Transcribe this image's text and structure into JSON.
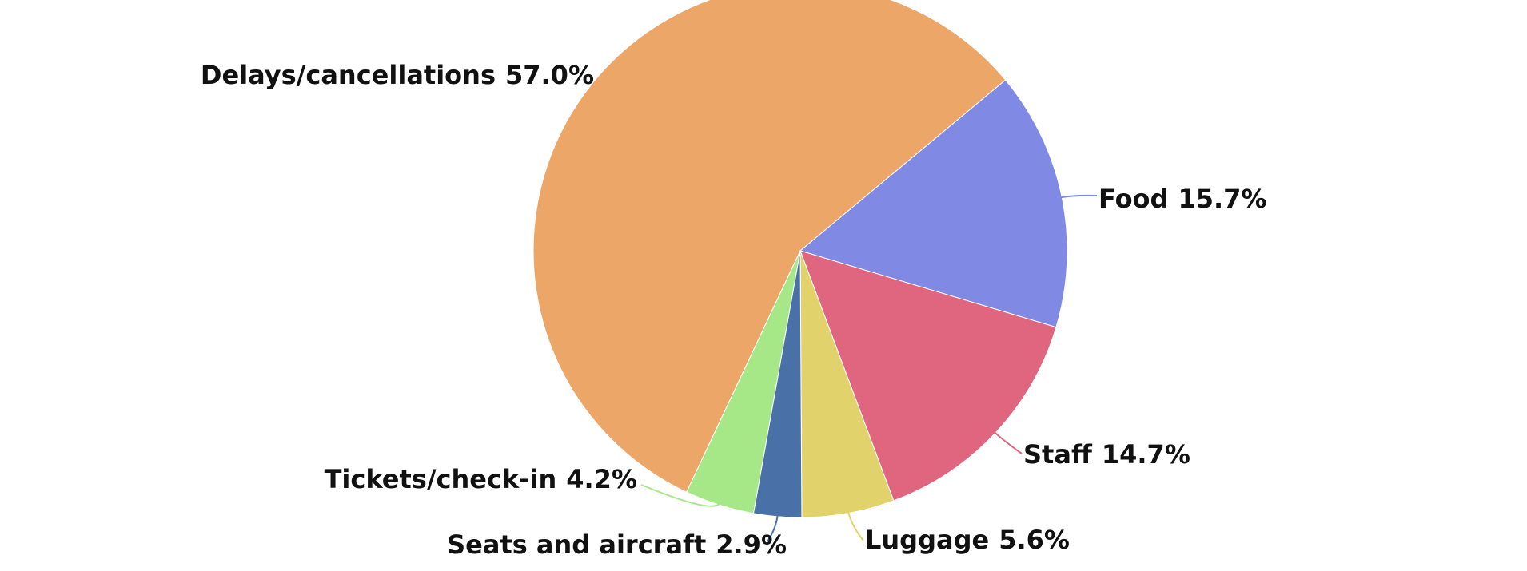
{
  "chart_data": {
    "type": "pie",
    "categories": [
      "Delays/cancellations",
      "Food",
      "Staff",
      "Luggage",
      "Seats and aircraft",
      "Tickets/check-in"
    ],
    "values": [
      57.0,
      15.7,
      14.7,
      5.6,
      2.9,
      4.2
    ],
    "value_labels": [
      "57.0%",
      "15.7%",
      "14.7%",
      "5.6%",
      "2.9%",
      "4.2%"
    ],
    "colors": [
      "#eba668",
      "#808ae4",
      "#e06680",
      "#e2d26c",
      "#4a70a8",
      "#a6e888"
    ]
  }
}
